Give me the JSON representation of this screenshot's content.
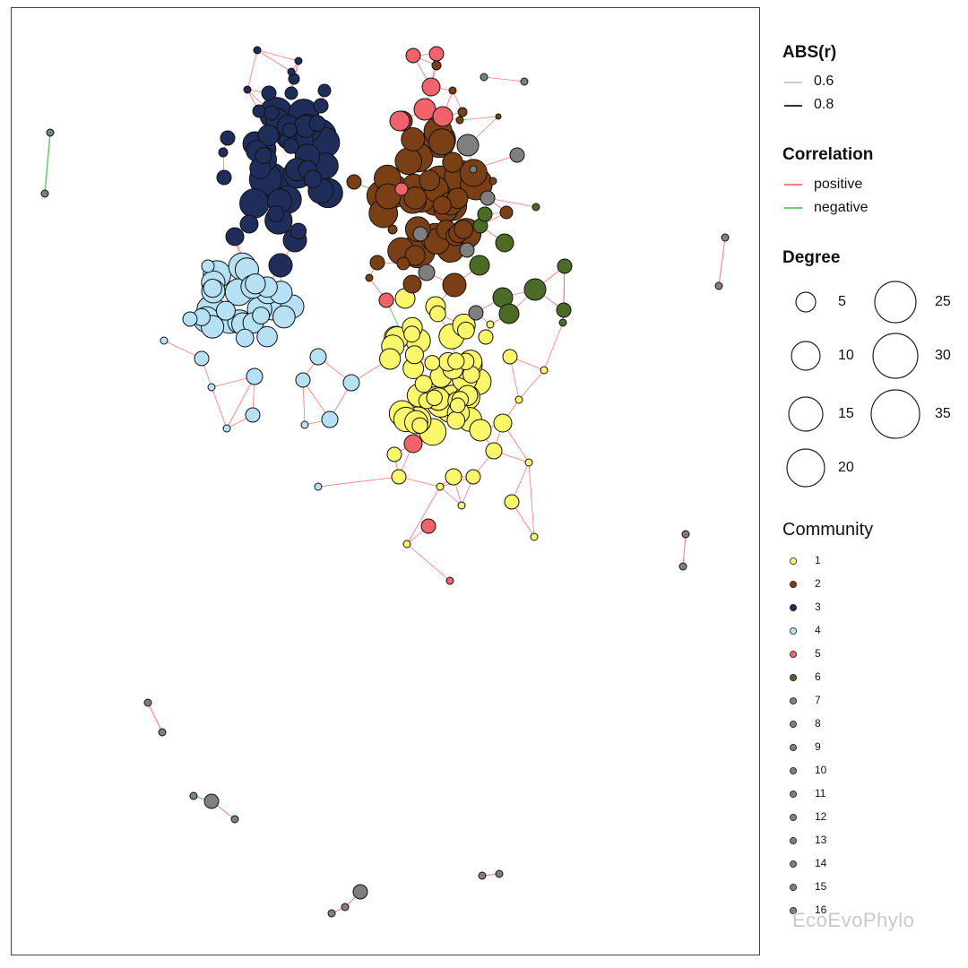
{
  "legend": {
    "abs_title": "ABS(r)",
    "abs_items": [
      {
        "label": "0.6"
      },
      {
        "label": "0.8"
      }
    ],
    "correlation_title": "Correlation",
    "correlation_items": [
      {
        "label": "positive",
        "color": "#ff5555"
      },
      {
        "label": "negative",
        "color": "#44bb44"
      }
    ],
    "degree_title": "Degree",
    "degree_items": [
      {
        "label": "5"
      },
      {
        "label": "10"
      },
      {
        "label": "15"
      },
      {
        "label": "20"
      },
      {
        "label": "25"
      },
      {
        "label": "30"
      },
      {
        "label": "35"
      }
    ],
    "community_title": "Community",
    "community_items": [
      {
        "label": "1",
        "color": "#fbf76b"
      },
      {
        "label": "2",
        "color": "#7b3f16"
      },
      {
        "label": "3",
        "color": "#1f2d5a"
      },
      {
        "label": "4",
        "color": "#b6e0f4"
      },
      {
        "label": "5",
        "color": "#f0636b"
      },
      {
        "label": "6",
        "color": "#4b6b26"
      },
      {
        "label": "7",
        "color": "#7f7f7f"
      },
      {
        "label": "8",
        "color": "#7f7f7f"
      },
      {
        "label": "9",
        "color": "#7f7f7f"
      },
      {
        "label": "10",
        "color": "#7f7f7f"
      },
      {
        "label": "11",
        "color": "#7f7f7f"
      },
      {
        "label": "12",
        "color": "#7f7f7f"
      },
      {
        "label": "13",
        "color": "#7f7f7f"
      },
      {
        "label": "14",
        "color": "#7f7f7f"
      },
      {
        "label": "15",
        "color": "#7f7f7f"
      },
      {
        "label": "16",
        "color": "#7f7f7f"
      }
    ]
  },
  "watermark": "EcoEvoPhylo"
}
